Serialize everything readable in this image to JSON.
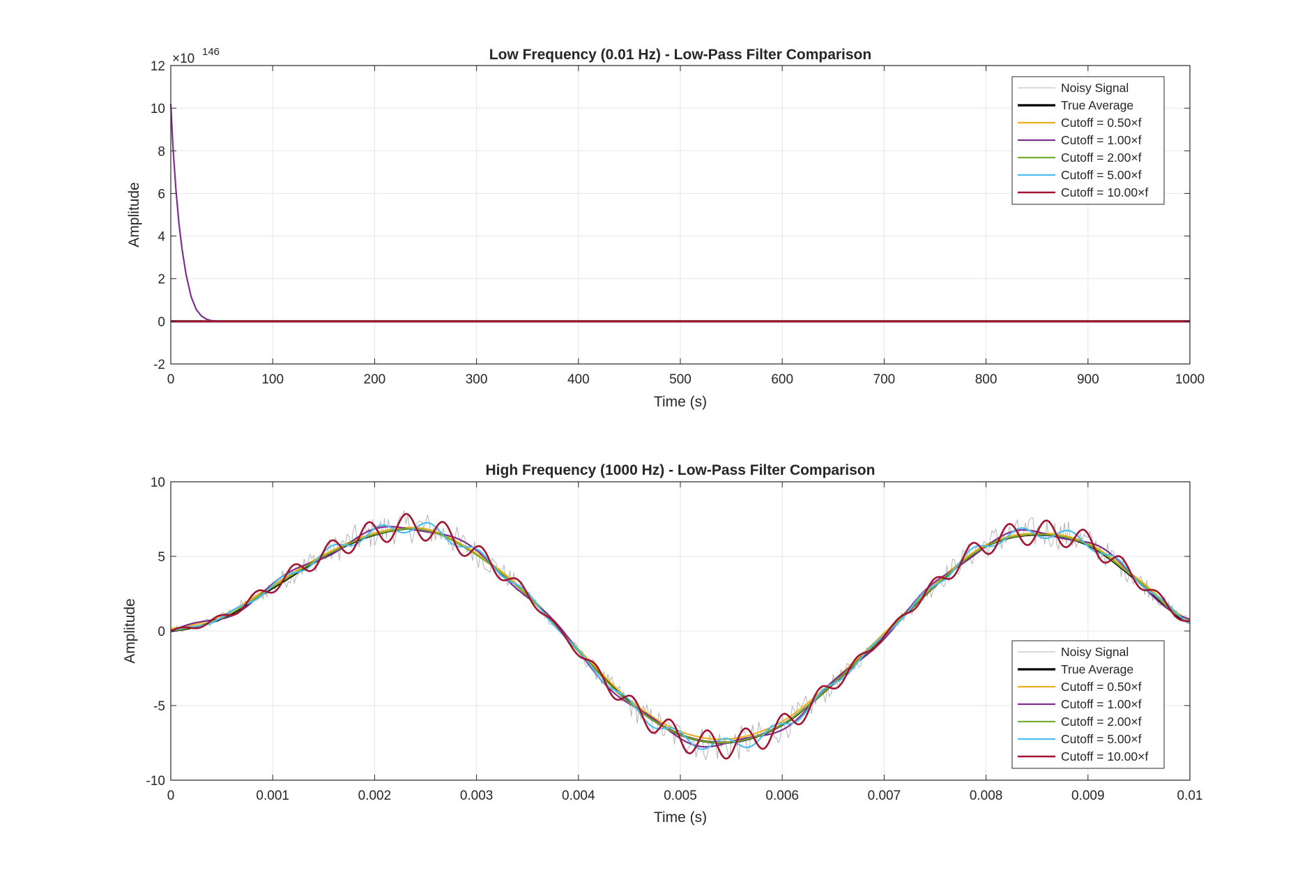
{
  "chart_data": [
    {
      "type": "line",
      "title": "Low Frequency (0.01 Hz) - Low-Pass Filter Comparison",
      "xlabel": "Time (s)",
      "ylabel": "Amplitude",
      "exponent_label": "×10",
      "exponent_power": "146",
      "xlim": [
        0,
        1000
      ],
      "ylim": [
        -2,
        12
      ],
      "y_scale_multiplier": "1e146",
      "xticks": [
        0,
        100,
        200,
        300,
        400,
        500,
        600,
        700,
        800,
        900,
        1000
      ],
      "yticks": [
        -2,
        0,
        2,
        4,
        6,
        8,
        10,
        12
      ],
      "grid": true,
      "legend_position": "top-right",
      "series": [
        {
          "name": "Noisy Signal",
          "color": "#b3b3b3",
          "description_values": "≈0 over full range",
          "x": [
            0,
            1000
          ],
          "y": [
            0,
            0
          ]
        },
        {
          "name": "True Average",
          "color": "#000000",
          "x": [
            0,
            1000
          ],
          "y": [
            0,
            0
          ]
        },
        {
          "name": "Cutoff = 0.50×f",
          "color": "#EDB120",
          "x": [
            0,
            1000
          ],
          "y": [
            0,
            0
          ]
        },
        {
          "name": "Cutoff = 1.00×f",
          "color": "#7E2F8E",
          "x": [
            0,
            2,
            5,
            8,
            11,
            15,
            20,
            25,
            30,
            35,
            40,
            50,
            1000
          ],
          "y": [
            10.2,
            8.3,
            6.2,
            4.6,
            3.4,
            2.2,
            1.15,
            0.55,
            0.25,
            0.1,
            0.03,
            0,
            0
          ]
        },
        {
          "name": "Cutoff = 2.00×f",
          "color": "#77AC30",
          "x": [
            0,
            1000
          ],
          "y": [
            0,
            0
          ]
        },
        {
          "name": "Cutoff = 5.00×f",
          "color": "#4DBEEE",
          "x": [
            0,
            1000
          ],
          "y": [
            0,
            0
          ]
        },
        {
          "name": "Cutoff = 10.00×f",
          "color": "#A2142F",
          "x": [
            0,
            1000
          ],
          "y": [
            0,
            0
          ]
        }
      ]
    },
    {
      "type": "line",
      "title": "High Frequency (1000 Hz) - Low-Pass Filter Comparison",
      "xlabel": "Time (s)",
      "ylabel": "Amplitude",
      "xlim": [
        0,
        0.01
      ],
      "ylim": [
        -10,
        10
      ],
      "xticks": [
        0,
        0.001,
        0.002,
        0.003,
        0.004,
        0.005,
        0.006,
        0.007,
        0.008,
        0.009,
        0.01
      ],
      "yticks": [
        -10,
        -5,
        0,
        5,
        10
      ],
      "grid": true,
      "legend_position": "bottom-right",
      "series": [
        {
          "name": "Noisy Signal",
          "color": "#b3b3b3"
        },
        {
          "name": "True Average",
          "color": "#000000"
        },
        {
          "name": "Cutoff = 0.50×f",
          "color": "#EDB120"
        },
        {
          "name": "Cutoff = 1.00×f",
          "color": "#7E2F8E"
        },
        {
          "name": "Cutoff = 2.00×f",
          "color": "#77AC30"
        },
        {
          "name": "Cutoff = 5.00×f",
          "color": "#4DBEEE"
        },
        {
          "name": "Cutoff = 10.00×f",
          "color": "#A2142F"
        }
      ],
      "base_curve": {
        "x": [
          0,
          0.0005,
          0.001,
          0.0015,
          0.002,
          0.0025,
          0.003,
          0.0035,
          0.004,
          0.0045,
          0.005,
          0.0055,
          0.006,
          0.0065,
          0.007,
          0.0075,
          0.008,
          0.0085,
          0.009,
          0.0095,
          0.01
        ],
        "y": [
          0,
          0.9,
          3.0,
          5.1,
          6.6,
          6.9,
          5.2,
          2.4,
          -1.4,
          -4.9,
          -7.1,
          -7.6,
          -6.4,
          -3.6,
          -0.3,
          3.1,
          5.8,
          6.6,
          5.9,
          3.4,
          0.6
        ]
      }
    }
  ]
}
